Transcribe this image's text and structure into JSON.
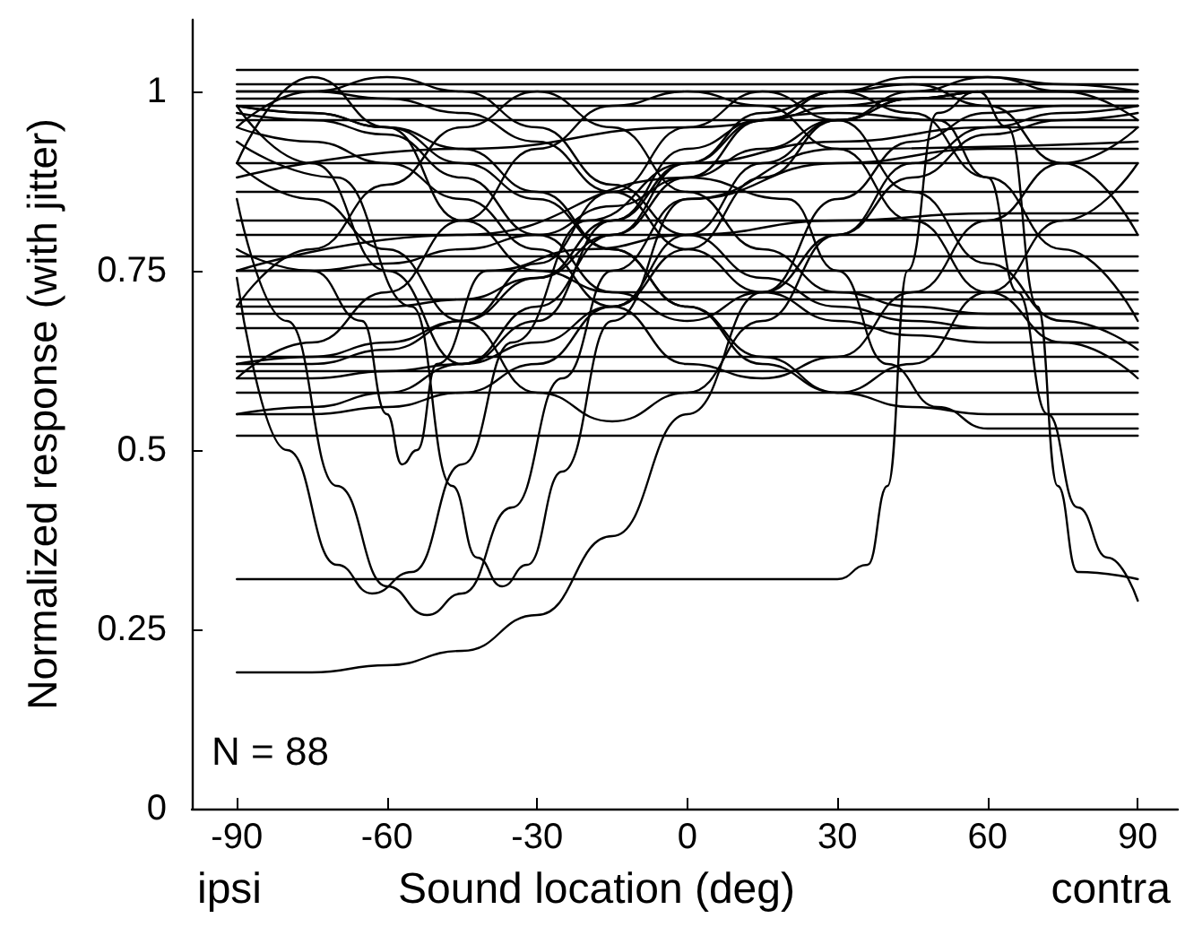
{
  "chart_data": {
    "type": "line",
    "ylabel": "Normalized response (with jitter)",
    "xlabel": "Sound location (deg)",
    "annotations": [
      "N = 88",
      "ipsi",
      "contra"
    ],
    "color": "#000000",
    "xlim": [
      -99,
      98
    ],
    "xticks": [
      -90,
      -60,
      -30,
      0,
      30,
      60,
      90
    ],
    "ylim": [
      0,
      1.1
    ],
    "yticks": [
      0,
      0.25,
      0.5,
      0.75,
      1
    ],
    "grid": false,
    "marker": "none",
    "line_style": "solid",
    "x": [
      -90,
      -75,
      -60,
      -45,
      -30,
      -15,
      0,
      15,
      30,
      45,
      60,
      75,
      90
    ],
    "series": [
      {
        "values": [
          0.52,
          0.52,
          0.52,
          0.52,
          0.52,
          0.52,
          0.52,
          0.52,
          0.52,
          0.52,
          0.52,
          0.52,
          0.52
        ]
      },
      {
        "values": [
          0.58,
          0.58,
          0.58,
          0.58,
          0.58,
          0.58,
          0.58,
          0.58,
          0.58,
          0.58,
          0.58,
          0.58,
          0.58
        ]
      },
      {
        "values": [
          0.61,
          0.61,
          0.61,
          0.61,
          0.61,
          0.61,
          0.61,
          0.61,
          0.61,
          0.61,
          0.61,
          0.61,
          0.61
        ]
      },
      {
        "values": [
          0.63,
          0.63,
          0.63,
          0.63,
          0.63,
          0.63,
          0.63,
          0.63,
          0.63,
          0.63,
          0.63,
          0.63,
          0.63
        ]
      },
      {
        "values": [
          0.67,
          0.67,
          0.67,
          0.67,
          0.67,
          0.67,
          0.67,
          0.67,
          0.67,
          0.67,
          0.67,
          0.67,
          0.67
        ]
      },
      {
        "values": [
          0.69,
          0.69,
          0.69,
          0.69,
          0.69,
          0.69,
          0.69,
          0.69,
          0.69,
          0.69,
          0.69,
          0.69,
          0.69
        ]
      },
      {
        "values": [
          0.71,
          0.71,
          0.71,
          0.71,
          0.71,
          0.71,
          0.71,
          0.71,
          0.71,
          0.71,
          0.71,
          0.71,
          0.71
        ]
      },
      {
        "values": [
          0.75,
          0.75,
          0.75,
          0.75,
          0.75,
          0.75,
          0.75,
          0.75,
          0.75,
          0.75,
          0.75,
          0.75,
          0.75
        ]
      },
      {
        "values": [
          0.77,
          0.77,
          0.77,
          0.77,
          0.77,
          0.77,
          0.77,
          0.77,
          0.77,
          0.77,
          0.77,
          0.77,
          0.77
        ]
      },
      {
        "values": [
          0.8,
          0.8,
          0.8,
          0.8,
          0.8,
          0.8,
          0.8,
          0.8,
          0.8,
          0.8,
          0.8,
          0.8,
          0.8
        ]
      },
      {
        "values": [
          0.82,
          0.82,
          0.82,
          0.82,
          0.82,
          0.82,
          0.82,
          0.82,
          0.82,
          0.82,
          0.82,
          0.82,
          0.82
        ]
      },
      {
        "values": [
          0.86,
          0.86,
          0.86,
          0.86,
          0.86,
          0.86,
          0.86,
          0.86,
          0.86,
          0.86,
          0.86,
          0.86,
          0.86
        ]
      },
      {
        "values": [
          0.9,
          0.9,
          0.9,
          0.9,
          0.9,
          0.9,
          0.9,
          0.9,
          0.9,
          0.9,
          0.9,
          0.9,
          0.9
        ]
      },
      {
        "values": [
          0.96,
          0.96,
          0.96,
          0.96,
          0.96,
          0.96,
          0.96,
          0.96,
          0.96,
          0.96,
          0.96,
          0.96,
          0.96
        ]
      },
      {
        "values": [
          0.98,
          0.98,
          0.98,
          0.98,
          0.98,
          0.98,
          0.98,
          0.98,
          0.98,
          0.98,
          0.98,
          0.98,
          0.98
        ]
      },
      {
        "values": [
          0.99,
          0.99,
          0.99,
          0.99,
          0.99,
          0.99,
          0.99,
          0.99,
          0.99,
          0.99,
          0.99,
          0.99,
          0.99
        ]
      },
      {
        "values": [
          1,
          1,
          1,
          1,
          1,
          1,
          1,
          1,
          1,
          1,
          1,
          1,
          1
        ]
      },
      {
        "values": [
          1.01,
          1.01,
          1.01,
          1.01,
          1.01,
          1.01,
          1.01,
          1.01,
          1.01,
          1.01,
          1.01,
          1.01,
          1.01
        ]
      },
      {
        "values": [
          1.03,
          1.03,
          1.03,
          1.03,
          1.03,
          1.03,
          1.03,
          1.03,
          1.03,
          1.03,
          1.03,
          1.03,
          1.03
        ]
      },
      {
        "x": [
          -90,
          -30,
          30,
          36,
          40,
          44,
          50,
          58,
          64,
          70,
          74,
          78,
          90
        ],
        "values": [
          0.32,
          0.32,
          0.32,
          0.34,
          0.45,
          0.75,
          0.97,
          1,
          0.95,
          0.7,
          0.45,
          0.33,
          0.32
        ]
      },
      {
        "values": [
          0.19,
          0.19,
          0.2,
          0.22,
          0.27,
          0.38,
          0.55,
          0.72,
          0.85,
          0.93,
          0.97,
          0.98,
          0.98
        ]
      },
      {
        "x": [
          -90,
          -80,
          -70,
          -60,
          -52,
          -45,
          -35,
          -25,
          -15,
          0,
          30,
          60,
          90
        ],
        "values": [
          0.85,
          0.68,
          0.45,
          0.31,
          0.27,
          0.3,
          0.42,
          0.6,
          0.75,
          0.85,
          0.9,
          0.92,
          0.92
        ]
      },
      {
        "x": [
          -90,
          -80,
          -70,
          -63,
          -55,
          -45,
          -35,
          -20,
          0,
          30,
          60,
          90
        ],
        "values": [
          0.74,
          0.5,
          0.34,
          0.3,
          0.33,
          0.48,
          0.65,
          0.82,
          0.9,
          0.93,
          0.95,
          0.95
        ]
      },
      {
        "x": [
          -90,
          -70,
          -55,
          -47,
          -42,
          -37,
          -32,
          -25,
          -15,
          0,
          30,
          90
        ],
        "values": [
          0.93,
          0.88,
          0.7,
          0.45,
          0.35,
          0.31,
          0.34,
          0.47,
          0.68,
          0.85,
          0.92,
          0.93
        ]
      },
      {
        "x": [
          -90,
          -75,
          -65,
          -60,
          -57,
          -54,
          -50,
          -40,
          -20,
          0,
          30,
          60,
          90
        ],
        "values": [
          0.78,
          0.75,
          0.68,
          0.55,
          0.48,
          0.5,
          0.62,
          0.75,
          0.78,
          0.8,
          0.82,
          0.83,
          0.83
        ]
      },
      {
        "x": [
          -90,
          -45,
          0,
          30,
          50,
          60,
          66,
          72,
          78,
          84,
          90
        ],
        "values": [
          0.88,
          0.92,
          0.95,
          0.97,
          0.96,
          0.88,
          0.72,
          0.55,
          0.42,
          0.35,
          0.29
        ]
      },
      {
        "x": [
          -90,
          -45,
          0,
          20,
          30,
          40,
          50,
          60,
          75,
          90
        ],
        "values": [
          0.75,
          0.8,
          0.88,
          0.85,
          0.75,
          0.62,
          0.56,
          0.53,
          0.53,
          0.53
        ]
      },
      {
        "values": [
          0.6,
          0.65,
          0.72,
          0.82,
          0.92,
          0.98,
          1,
          0.98,
          0.92,
          0.82,
          0.72,
          0.65,
          0.6
        ]
      },
      {
        "values": [
          0.55,
          0.56,
          0.58,
          0.62,
          0.7,
          0.8,
          0.9,
          0.97,
          1,
          0.97,
          0.88,
          0.78,
          0.68
        ]
      },
      {
        "values": [
          0.95,
          1,
          1.02,
          1,
          0.95,
          0.87,
          0.8,
          0.74,
          0.7,
          0.68,
          0.67,
          0.67,
          0.67
        ]
      },
      {
        "values": [
          0.6,
          0.6,
          0.61,
          0.62,
          0.65,
          0.7,
          0.78,
          0.88,
          0.96,
          1,
          1.02,
          1,
          0.96
        ]
      },
      {
        "values": [
          0.97,
          0.96,
          0.94,
          0.88,
          0.8,
          0.72,
          0.68,
          0.72,
          0.8,
          0.88,
          0.94,
          0.96,
          0.97
        ]
      },
      {
        "values": [
          0.95,
          0.93,
          0.9,
          0.85,
          0.78,
          0.7,
          0.62,
          0.6,
          0.63,
          0.72,
          0.82,
          0.9,
          0.95
        ]
      },
      {
        "values": [
          0.55,
          0.55,
          0.56,
          0.58,
          0.62,
          0.7,
          0.8,
          0.9,
          0.96,
          0.99,
          1,
          1,
          1
        ]
      },
      {
        "values": [
          1,
          1,
          0.99,
          0.97,
          0.93,
          0.86,
          0.78,
          0.72,
          0.68,
          0.66,
          0.65,
          0.65,
          0.65
        ]
      },
      {
        "values": [
          0.7,
          0.78,
          0.87,
          0.95,
          1,
          0.95,
          0.86,
          0.78,
          0.72,
          0.7,
          0.69,
          0.69,
          0.69
        ]
      },
      {
        "values": [
          0.62,
          0.63,
          0.65,
          0.68,
          0.74,
          0.82,
          0.9,
          0.96,
          1,
          1.02,
          1.02,
          1.01,
          1
        ]
      },
      {
        "values": [
          0.9,
          0.85,
          0.78,
          0.68,
          0.58,
          0.54,
          0.58,
          0.68,
          0.8,
          0.9,
          0.95,
          0.97,
          0.98
        ]
      },
      {
        "values": [
          0.7,
          0.7,
          0.7,
          0.71,
          0.74,
          0.8,
          0.88,
          0.96,
          1,
          1.01,
          0.98,
          0.9,
          0.8
        ]
      },
      {
        "values": [
          0.98,
          0.97,
          0.95,
          0.92,
          0.86,
          0.78,
          0.7,
          0.63,
          0.58,
          0.56,
          0.55,
          0.55,
          0.55
        ]
      },
      {
        "values": [
          0.98,
          0.97,
          0.95,
          0.9,
          0.85,
          0.78,
          0.7,
          0.62,
          0.58,
          0.62,
          0.72,
          0.82,
          0.9
        ]
      },
      {
        "values": [
          0.9,
          1.02,
          0.95,
          0.82,
          0.75,
          0.72,
          0.72,
          0.72,
          0.72,
          0.72,
          0.72,
          0.72,
          0.72
        ]
      },
      {
        "values": [
          0.75,
          0.75,
          0.76,
          0.78,
          0.8,
          0.84,
          0.88,
          0.92,
          0.96,
          0.99,
          1,
          1,
          1
        ]
      },
      {
        "values": [
          0.62,
          0.62,
          0.64,
          0.68,
          0.76,
          0.86,
          0.95,
          1,
          0.96,
          0.86,
          0.76,
          0.68,
          0.64
        ]
      },
      {
        "values": [
          0.98,
          0.9,
          0.75,
          0.62,
          0.68,
          0.82,
          0.92,
          0.96,
          0.98,
          0.99,
          1,
          1,
          1
        ]
      }
    ]
  }
}
